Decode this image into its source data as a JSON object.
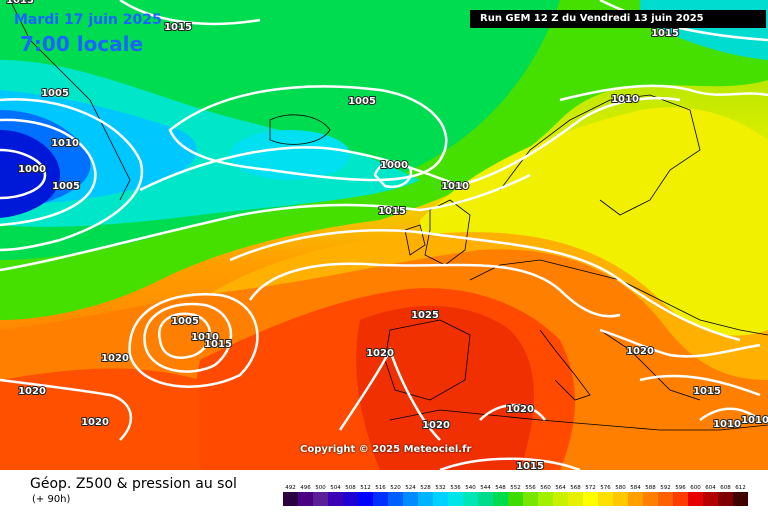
{
  "header": {
    "date": "Mardi 17 juin 2025",
    "local_time": "7:00 locale",
    "run": "Run GEM 12 Z du Vendredi 13 juin 2025"
  },
  "footer": {
    "product": "Géop. Z500 & pression au sol",
    "lead": "(+ 90h)",
    "copyright": "Copyright © 2025 Meteociel.fr"
  },
  "scale": {
    "unit_labels": [
      "492",
      "496",
      "500",
      "504",
      "508",
      "512",
      "516",
      "520",
      "524",
      "528",
      "532",
      "536",
      "540",
      "544",
      "548",
      "552",
      "556",
      "560",
      "564",
      "568",
      "572",
      "576",
      "580",
      "584",
      "588",
      "592",
      "596",
      "600",
      "604",
      "608",
      "612"
    ],
    "colors": [
      "#2b0040",
      "#4b0082",
      "#5a1e96",
      "#3c00b4",
      "#1e00d2",
      "#0000ff",
      "#0030ff",
      "#0060ff",
      "#008cff",
      "#00b4ff",
      "#00d2ff",
      "#00e6e6",
      "#00e6b4",
      "#00dc8c",
      "#00dc50",
      "#3cdc00",
      "#78e600",
      "#a0f000",
      "#c8f000",
      "#e6f000",
      "#ffff00",
      "#ffe000",
      "#ffc800",
      "#ffa000",
      "#ff8000",
      "#ff6000",
      "#ff3c00",
      "#e60000",
      "#b40000",
      "#800000",
      "#400000"
    ]
  },
  "isobars": [
    {
      "label": "1015"
    },
    {
      "label": "1005"
    },
    {
      "label": "1010"
    },
    {
      "label": "1000"
    },
    {
      "label": "1005"
    },
    {
      "label": "1005"
    },
    {
      "label": "1000"
    },
    {
      "label": "1010"
    },
    {
      "label": "1015"
    },
    {
      "label": "1015"
    },
    {
      "label": "1010"
    },
    {
      "label": "1005"
    },
    {
      "label": "1010"
    },
    {
      "label": "1015"
    },
    {
      "label": "1020"
    },
    {
      "label": "1025"
    },
    {
      "label": "1020"
    },
    {
      "label": "1020"
    },
    {
      "label": "1020"
    },
    {
      "label": "1020"
    },
    {
      "label": "1020"
    },
    {
      "label": "1020"
    },
    {
      "label": "1015"
    },
    {
      "label": "1015"
    },
    {
      "label": "1010"
    },
    {
      "label": "1010"
    },
    {
      "label": "1015"
    }
  ]
}
